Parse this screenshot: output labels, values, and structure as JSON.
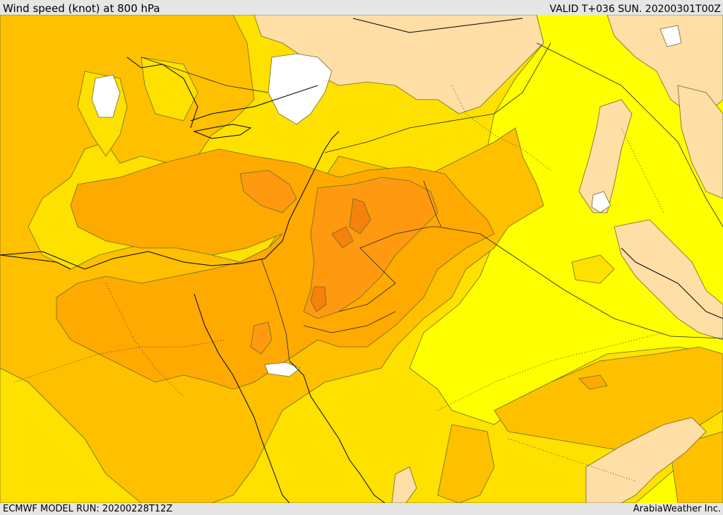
{
  "header": {
    "title": "Wind speed (knot) at 800 hPa",
    "valid_time": "VALID T+036 SUN. 20200301T00Z"
  },
  "footer": {
    "model_run": "ECMWF MODEL RUN: 20200228T12Z",
    "credit": "ArabiaWeather Inc."
  },
  "map": {
    "palette": {
      "white": "#ffffff",
      "peach": "#ffdfa6",
      "light_yellow": "#ffff00",
      "yellow": "#ffe100",
      "amber": "#ffc000",
      "orange": "#ffaa00",
      "dark_orange": "#ff9a10",
      "deep_orange": "#f5820a"
    }
  }
}
